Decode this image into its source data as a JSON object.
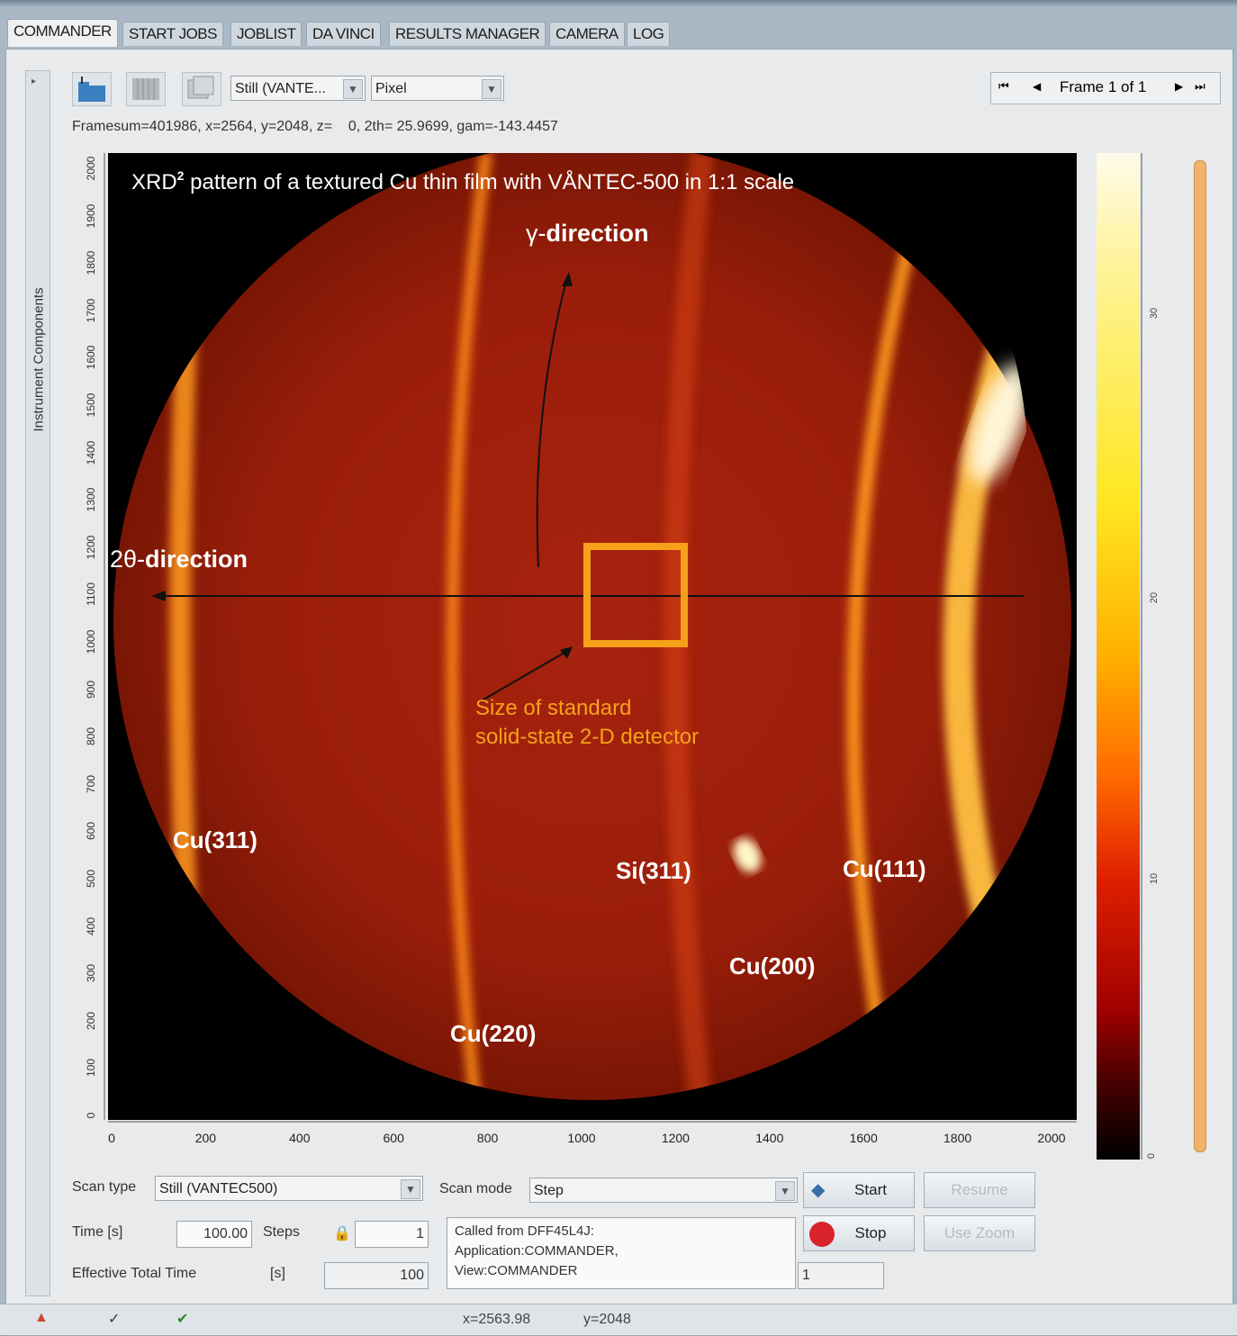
{
  "tabs": [
    "COMMANDER",
    "START JOBS",
    "JOBLIST",
    "DA VINCI",
    "RESULTS MANAGER",
    "CAMERA",
    "LOG"
  ],
  "sidebar": {
    "label": "Instrument Components"
  },
  "toolbar": {
    "mode_select": "Still (VANTE...",
    "unit_select": "Pixel"
  },
  "nav": {
    "first": "⏮",
    "prev": "◀",
    "label": "Frame 1 of 1",
    "next": "▶",
    "last": "⏭"
  },
  "status_info": "Framesum=401986, x=2564, y=2048, z=    0, 2th= 25.9699, gam=-143.4457",
  "image": {
    "title_prefix": "XRD",
    "title_superscript": "2",
    "title_suffix": " pattern of a textured Cu thin film with VÅNTEC-500 in 1:1 scale",
    "gamma_label": "γ-",
    "gamma_bold": "direction",
    "twotheta_label": "2θ-",
    "twotheta_bold": "direction",
    "detector_note_line1": "Size of standard",
    "detector_note_line2": "solid-state 2-D detector",
    "peaks": [
      "Cu(311)",
      "Cu(220)",
      "Si(311)",
      "Cu(200)",
      "Cu(111)"
    ],
    "colors": {
      "ring": "#ffb030",
      "box": "#f7a11a",
      "note": "#f7a11a"
    }
  },
  "axes": {
    "x_ticks": [
      "0",
      "200",
      "400",
      "600",
      "800",
      "1000",
      "1200",
      "1400",
      "1600",
      "1800",
      "2000"
    ],
    "y_ticks": [
      "2000",
      "1900",
      "1800",
      "1700",
      "1600",
      "1500",
      "1400",
      "1300",
      "1200",
      "1100",
      "1000",
      "900",
      "800",
      "700",
      "600",
      "500",
      "400",
      "300",
      "200",
      "100",
      "0"
    ],
    "colorbar_labels": [
      "30",
      "20",
      "10",
      "0"
    ]
  },
  "controls": {
    "scan_type_label": "Scan type",
    "scan_type_value": "Still (VANTEC500)",
    "scan_mode_label": "Scan mode",
    "scan_mode_value": "Step",
    "time_label": "Time   [s]",
    "time_value": "100.00",
    "steps_label": "Steps",
    "steps_value": "1",
    "effective_label": "Effective Total Time",
    "effective_unit": "[s]",
    "effective_value": "100",
    "log_text": "Called from DFF45L4J:\nApplication:COMMANDER,\nView:COMMANDER",
    "counter_value": "1",
    "start": "Start",
    "stop": "Stop",
    "resume": "Resume",
    "use_zoom": "Use Zoom"
  },
  "statusbar": {
    "x_readout": "x=2563.98",
    "y_readout": "y=2048"
  }
}
